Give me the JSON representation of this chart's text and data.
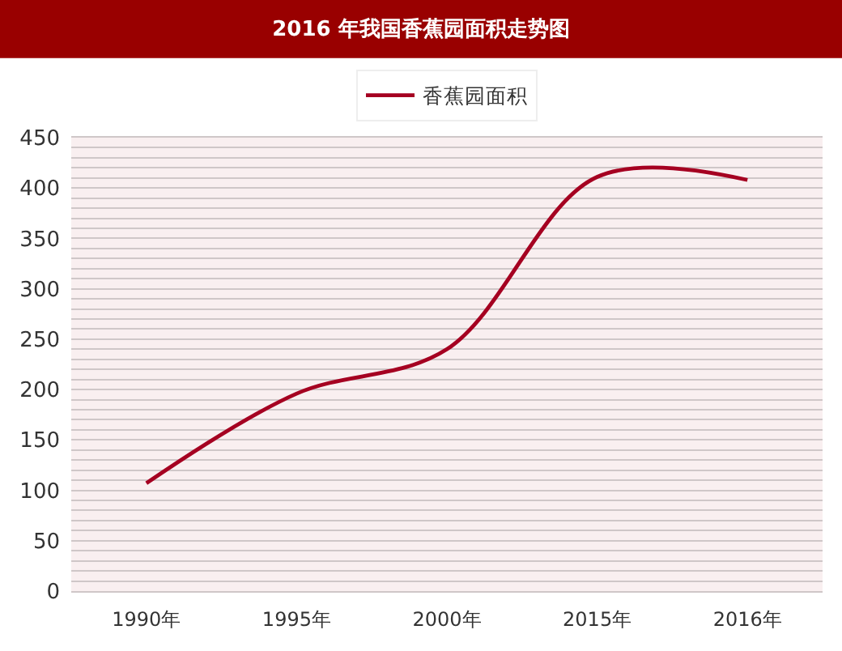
{
  "chart_data": {
    "type": "line",
    "title": "2016 年我国香蕉园面积走势图",
    "categories": [
      "1990年",
      "1995年",
      "2000年",
      "2015年",
      "2016年"
    ],
    "series": [
      {
        "name": "香蕉园面积",
        "color": "#a50021",
        "values": [
          107,
          196,
          240,
          411,
          408
        ]
      }
    ],
    "ylim": [
      0,
      450
    ],
    "yticks": [
      0,
      {
        "value": 10,
        "label": null
      },
      {
        "value": 20,
        "label": null
      },
      {
        "value": 30,
        "label": null
      },
      {
        "value": 40,
        "label": null
      },
      50,
      {
        "value": 60,
        "label": null
      },
      {
        "value": 70,
        "label": null
      },
      {
        "value": 80,
        "label": null
      },
      {
        "value": 90,
        "label": null
      },
      100,
      {
        "value": 110,
        "label": null
      },
      {
        "value": 120,
        "label": null
      },
      {
        "value": 130,
        "label": null
      },
      {
        "value": 140,
        "label": null
      },
      150,
      {
        "value": 160,
        "label": null
      },
      {
        "value": 170,
        "label": null
      },
      {
        "value": 180,
        "label": null
      },
      {
        "value": 190,
        "label": null
      },
      200,
      {
        "value": 210,
        "label": null
      },
      {
        "value": 220,
        "label": null
      },
      {
        "value": 230,
        "label": null
      },
      {
        "value": 240,
        "label": null
      },
      250,
      {
        "value": 260,
        "label": null
      },
      {
        "value": 270,
        "label": null
      },
      {
        "value": 280,
        "label": null
      },
      {
        "value": 290,
        "label": null
      },
      300,
      {
        "value": 310,
        "label": null
      },
      {
        "value": 320,
        "label": null
      },
      {
        "value": 330,
        "label": null
      },
      {
        "value": 340,
        "label": null
      },
      350,
      {
        "value": 360,
        "label": null
      },
      {
        "value": 370,
        "label": null
      },
      {
        "value": 380,
        "label": null
      },
      {
        "value": 390,
        "label": null
      },
      400,
      {
        "value": 410,
        "label": null
      },
      {
        "value": 420,
        "label": null
      },
      {
        "value": 430,
        "label": null
      },
      {
        "value": 440,
        "label": null
      },
      450
    ],
    "grid": "y",
    "legend": "top",
    "line_style": "solid"
  }
}
